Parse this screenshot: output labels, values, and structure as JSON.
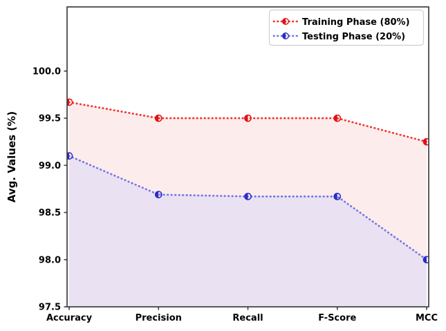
{
  "figure": {
    "background": "#ffffff",
    "spine_color": "#3d3d3d",
    "text_color": "#000000",
    "legend_border_color": "#cfcfcf",
    "legend_background": "#ffffff"
  },
  "chart_data": {
    "type": "line",
    "title": "",
    "xlabel": "",
    "ylabel": "Avg. Values (%)",
    "categories": [
      "Accuracy",
      "Precision",
      "Recall",
      "F-Score",
      "MCC"
    ],
    "series": [
      {
        "name": "Training Phase (80%)",
        "values": [
          99.67,
          99.5,
          99.5,
          99.5,
          99.25
        ],
        "marker_color": "#e01212",
        "line_color": "#f23636",
        "fill_color": "#fcecec",
        "marker": "half-filled-circle",
        "line_style": "dotted"
      },
      {
        "name": "Testing Phase (20%)",
        "values": [
          99.1,
          98.69,
          98.67,
          98.67,
          98.0
        ],
        "marker_color": "#2c2cc8",
        "line_color": "#7676e6",
        "fill_color": "#eae2f2",
        "marker": "half-filled-circle",
        "line_style": "dotted"
      }
    ],
    "ylim": [
      97.5,
      100.68
    ],
    "yticks": [
      97.5,
      98.0,
      98.5,
      99.0,
      99.5,
      100.0
    ],
    "ytick_labels": [
      "97.5",
      "98.0",
      "98.5",
      "99.0",
      "99.5",
      "100.0"
    ],
    "grid": false,
    "legend_position": "upper right"
  }
}
